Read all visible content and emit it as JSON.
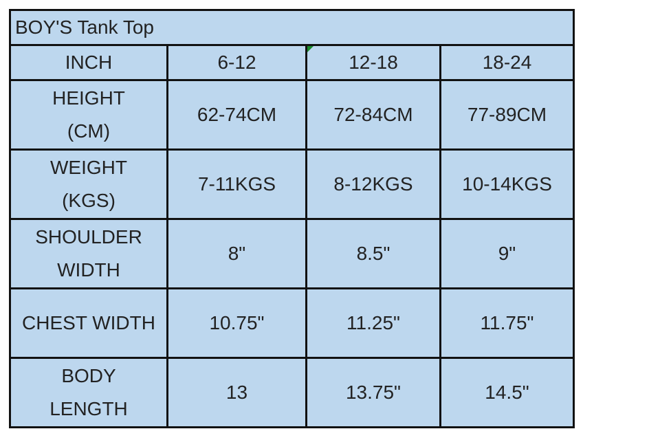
{
  "title": "BOY'S Tank Top",
  "header": [
    "INCH",
    "6-12",
    "12-18",
    "18-24"
  ],
  "rows": [
    {
      "label": [
        "HEIGHT",
        "(CM)"
      ],
      "values": [
        "62-74CM",
        "72-84CM",
        "77-89CM"
      ]
    },
    {
      "label": [
        "WEIGHT",
        "(KGS)"
      ],
      "values": [
        "7-11KGS",
        "8-12KGS",
        "10-14KGS"
      ]
    },
    {
      "label": [
        "SHOULDER",
        "WIDTH"
      ],
      "values": [
        "8\"",
        "8.5\"",
        "9\""
      ]
    },
    {
      "label": [
        "CHEST WIDTH"
      ],
      "values": [
        "10.75\"",
        "11.25\"",
        "11.75\""
      ]
    },
    {
      "label": [
        "BODY",
        "LENGTH"
      ],
      "values": [
        "13",
        "13.75\"",
        "14.5\""
      ]
    }
  ],
  "colors": {
    "cell_fill": "#bdd7ee",
    "border": "#111111",
    "comment_marker": "#1a8a2a"
  }
}
